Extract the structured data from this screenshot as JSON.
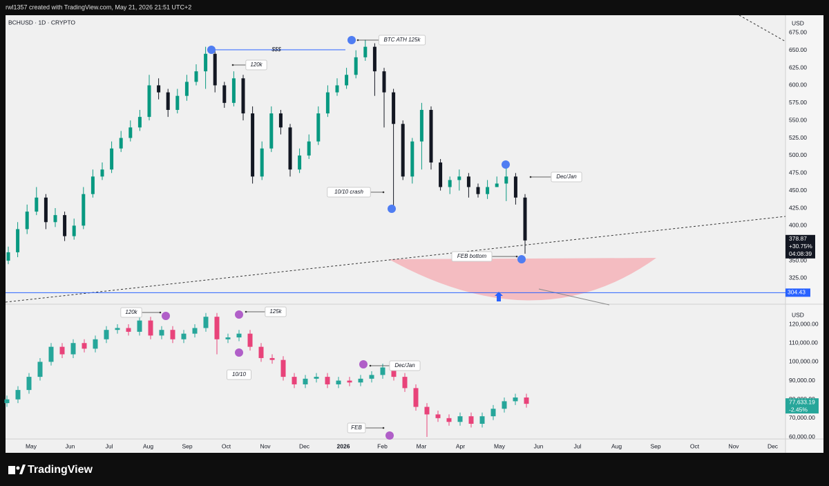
{
  "header": {
    "credit": "rwl1357 created with TradingView.com, May 21, 2026 21:51 UTC+2",
    "logo": "TradingView"
  },
  "time_axis": {
    "labels": [
      "May",
      "Jun",
      "Jul",
      "Aug",
      "Sep",
      "Oct",
      "Nov",
      "Dec",
      "2026",
      "Feb",
      "Mar",
      "Apr",
      "May",
      "Jun",
      "Jul",
      "Aug",
      "Sep",
      "Oct",
      "Nov",
      "Dec"
    ]
  },
  "chart_data": [
    {
      "type": "candlestick",
      "title": "BCHUSD · 1D · CRYPTO",
      "axis_title": "USD",
      "up_color": "#089981",
      "down_color": "#131722",
      "open": [
        350,
        362,
        395,
        420,
        440,
        405,
        415,
        385,
        400,
        445,
        470,
        480,
        510,
        525,
        540,
        555,
        600,
        590,
        565,
        585,
        605,
        620,
        645,
        600,
        575,
        610,
        560,
        470,
        510,
        560,
        540,
        480,
        500,
        520,
        560,
        590,
        600,
        615,
        640,
        655,
        620,
        590,
        545,
        470,
        520,
        565,
        490,
        455,
        465,
        470,
        455,
        445,
        455,
        460,
        470,
        440
      ],
      "high": [
        370,
        405,
        430,
        455,
        445,
        425,
        420,
        410,
        455,
        480,
        490,
        520,
        535,
        550,
        565,
        615,
        610,
        595,
        595,
        615,
        630,
        655,
        650,
        605,
        620,
        615,
        570,
        520,
        570,
        565,
        545,
        510,
        530,
        570,
        600,
        610,
        625,
        650,
        665,
        660,
        625,
        595,
        550,
        525,
        575,
        570,
        495,
        470,
        480,
        475,
        460,
        465,
        470,
        488,
        475,
        445
      ],
      "low": [
        345,
        355,
        388,
        415,
        395,
        398,
        378,
        380,
        395,
        440,
        465,
        475,
        505,
        520,
        535,
        550,
        580,
        555,
        560,
        578,
        600,
        595,
        590,
        568,
        570,
        550,
        460,
        465,
        505,
        530,
        470,
        475,
        495,
        515,
        555,
        585,
        595,
        610,
        635,
        585,
        540,
        425,
        465,
        460,
        480,
        480,
        450,
        445,
        450,
        440,
        440,
        438,
        455,
        435,
        430,
        360
      ],
      "close": [
        362,
        395,
        420,
        440,
        405,
        415,
        385,
        400,
        445,
        470,
        480,
        510,
        525,
        540,
        555,
        600,
        590,
        565,
        585,
        605,
        620,
        645,
        600,
        575,
        610,
        560,
        470,
        510,
        560,
        540,
        480,
        500,
        520,
        560,
        590,
        600,
        615,
        640,
        655,
        620,
        590,
        545,
        470,
        520,
        565,
        490,
        455,
        465,
        470,
        455,
        445,
        455,
        460,
        470,
        440,
        378.87
      ],
      "ylim": [
        288,
        700
      ],
      "yticks": [
        {
          "value": 325,
          "label": "325.00"
        },
        {
          "value": 350,
          "label": "350.00"
        },
        {
          "value": 375,
          "label": "375.00"
        },
        {
          "value": 400,
          "label": "400.00"
        },
        {
          "value": 425,
          "label": "425.00"
        },
        {
          "value": 450,
          "label": "450.00"
        },
        {
          "value": 475,
          "label": "475.00"
        },
        {
          "value": 500,
          "label": "500.00"
        },
        {
          "value": 525,
          "label": "525.00"
        },
        {
          "value": 550,
          "label": "550.00"
        },
        {
          "value": 575,
          "label": "575.00"
        },
        {
          "value": 600,
          "label": "600.00"
        },
        {
          "value": 625,
          "label": "625.00"
        },
        {
          "value": 650,
          "label": "650.00"
        },
        {
          "value": 675,
          "label": "675.00"
        }
      ],
      "change_label": "+30.75%",
      "countdown": "04:08:39",
      "hline": {
        "value": 304.43,
        "color": "#2962ff"
      },
      "annotations": [
        "$$$",
        "BTC ATH 125k",
        "120k",
        "10/10 crash",
        "Dec/Jan",
        "FEB bottom"
      ]
    },
    {
      "type": "candlestick",
      "axis_title": "USD",
      "up_color": "#26a69a",
      "down_color": "#e8437a",
      "open": [
        78000,
        80000,
        85000,
        92000,
        100000,
        108000,
        104000,
        110000,
        107000,
        112000,
        117000,
        118000,
        116000,
        122000,
        114000,
        117000,
        112000,
        115000,
        118000,
        124000,
        112000,
        113000,
        115000,
        108000,
        102000,
        101000,
        92000,
        88000,
        91000,
        92000,
        88000,
        90000,
        89000,
        91000,
        93000,
        97000,
        92000,
        86000,
        76000,
        72000,
        70000,
        68000,
        71000,
        67000,
        71000,
        75000,
        79000,
        81000
      ],
      "high": [
        82000,
        87000,
        94000,
        102000,
        110000,
        110000,
        112000,
        112000,
        114000,
        119000,
        120000,
        120000,
        124000,
        124000,
        119000,
        119000,
        117000,
        120000,
        126000,
        126000,
        115000,
        117000,
        117000,
        110000,
        104000,
        103000,
        94000,
        93000,
        94000,
        94000,
        92000,
        92000,
        93000,
        95000,
        99000,
        99000,
        94000,
        88000,
        78000,
        74000,
        72000,
        73000,
        73000,
        73000,
        77000,
        81000,
        83000,
        83000
      ],
      "low": [
        76000,
        78000,
        83000,
        90000,
        98000,
        102000,
        102000,
        105000,
        105000,
        110000,
        115000,
        114000,
        114000,
        112000,
        112000,
        110000,
        110000,
        113000,
        116000,
        104000,
        110000,
        111000,
        106000,
        100000,
        99000,
        90000,
        86000,
        86000,
        89000,
        86000,
        86000,
        87000,
        87000,
        89000,
        91000,
        90000,
        84000,
        74000,
        60000,
        68000,
        66000,
        66000,
        65000,
        65000,
        69000,
        73000,
        77000,
        75600
      ],
      "close": [
        80000,
        85000,
        92000,
        100000,
        108000,
        104000,
        110000,
        107000,
        112000,
        117000,
        118000,
        116000,
        122000,
        114000,
        117000,
        112000,
        115000,
        118000,
        124000,
        112000,
        113000,
        115000,
        108000,
        102000,
        101000,
        92000,
        88000,
        91000,
        92000,
        88000,
        90000,
        89000,
        91000,
        93000,
        97000,
        92000,
        86000,
        76000,
        72000,
        70000,
        68000,
        71000,
        67000,
        71000,
        75000,
        79000,
        81000,
        77633.19
      ],
      "value_labels": {
        "last": "77,633.19"
      },
      "change_label": "-2.45%",
      "ylim": [
        58900,
        130700
      ],
      "yticks": [
        {
          "value": 60000,
          "label": "60,000.00"
        },
        {
          "value": 70000,
          "label": "70,000.00"
        },
        {
          "value": 80000,
          "label": "80,000.00"
        },
        {
          "value": 90000,
          "label": "90,000.00"
        },
        {
          "value": 100000,
          "label": "100,000.00"
        },
        {
          "value": 110000,
          "label": "110,000.00"
        },
        {
          "value": 120000,
          "label": "120,000.00"
        }
      ],
      "annotations": [
        "120k",
        "125k",
        "10/10",
        "Dec/Jan",
        "FEB"
      ]
    }
  ]
}
